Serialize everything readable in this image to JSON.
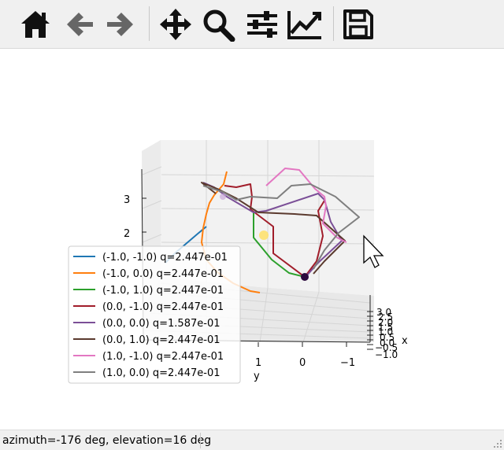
{
  "toolbar": {
    "buttons": [
      {
        "name": "home-button",
        "icon": "home-icon"
      },
      {
        "name": "back-button",
        "icon": "arrow-left-icon"
      },
      {
        "name": "forward-button",
        "icon": "arrow-right-icon"
      },
      {
        "name": "pan-button",
        "icon": "move-icon"
      },
      {
        "name": "zoom-button",
        "icon": "magnifier-icon"
      },
      {
        "name": "subplots-button",
        "icon": "sliders-icon"
      },
      {
        "name": "edit-axes-button",
        "icon": "chart-line-icon"
      },
      {
        "name": "save-button",
        "icon": "floppy-disk-icon"
      }
    ]
  },
  "plot": {
    "zaxis_ticks": [
      "2",
      "3"
    ],
    "yaxis_ticks": [
      "1",
      "0",
      "−1"
    ],
    "ylabel": "y",
    "xlabel": "x",
    "xaxis_ticks": [
      "3.0",
      "2.5",
      "2.0",
      "1.5",
      "1.0",
      "0.5",
      "0.0",
      "−0.5",
      "−1.0"
    ]
  },
  "legend": {
    "entries": [
      {
        "label": "(-1.0, -1.0) q=2.447e-01",
        "color": "#1f77b4"
      },
      {
        "label": "(-1.0, 0.0) q=2.447e-01",
        "color": "#ff7f0e"
      },
      {
        "label": "(-1.0, 1.0) q=2.447e-01",
        "color": "#2ca02c"
      },
      {
        "label": "(0.0, -1.0) q=2.447e-01",
        "color": "#a11d2a"
      },
      {
        "label": "(0.0, 0.0) q=1.587e-01",
        "color": "#7b4f97"
      },
      {
        "label": "(0.0, 1.0) q=2.447e-01",
        "color": "#5b3a2e"
      },
      {
        "label": "(1.0, -1.0) q=2.447e-01",
        "color": "#e377c2"
      },
      {
        "label": "(1.0, 0.0) q=2.447e-01",
        "color": "#7f7f7f"
      }
    ]
  },
  "status": {
    "text": "azimuth=-176 deg, elevation=16 deg"
  }
}
